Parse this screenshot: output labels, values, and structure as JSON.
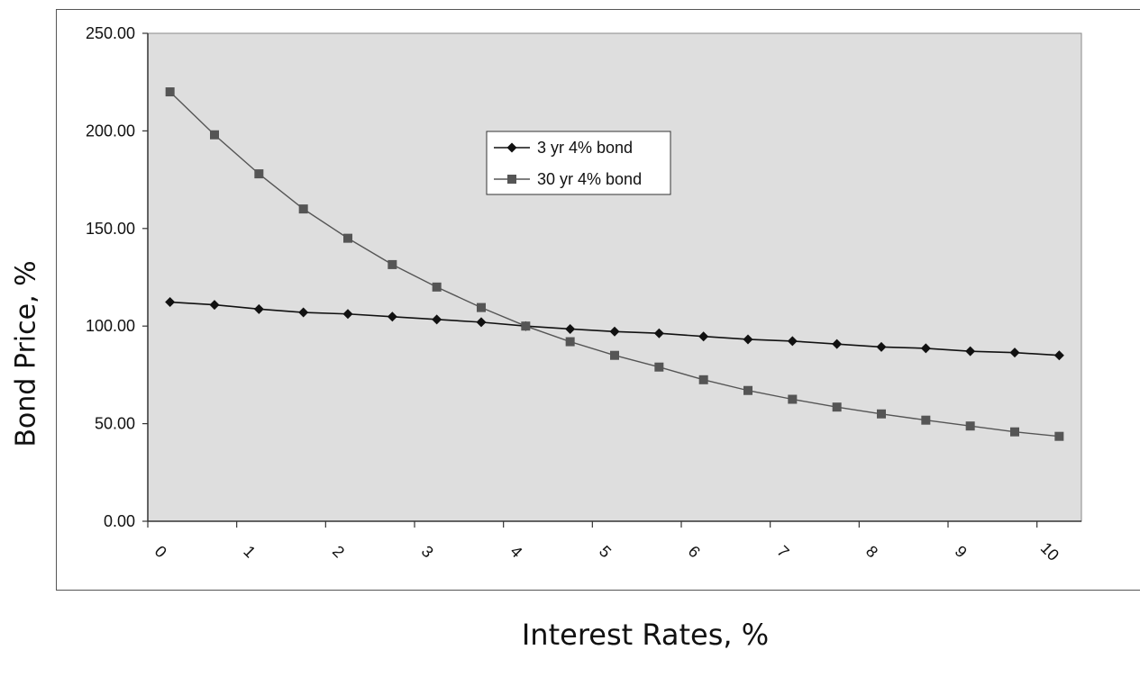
{
  "chart_data": {
    "type": "line",
    "xlabel": "Interest Rates, %",
    "ylabel": "Bond Price, %",
    "x": [
      0.25,
      0.75,
      1.25,
      1.75,
      2.25,
      2.75,
      3.25,
      3.75,
      4.25,
      4.75,
      5.25,
      5.75,
      6.25,
      6.75,
      7.25,
      7.75,
      8.25,
      8.75,
      9.25,
      9.75,
      10.25
    ],
    "x_ticks": [
      "0",
      "1",
      "2",
      "3",
      "4",
      "5",
      "6",
      "7",
      "8",
      "9",
      "10"
    ],
    "y_ticks": [
      "0.00",
      "50.00",
      "100.00",
      "150.00",
      "200.00",
      "250.00"
    ],
    "ylim": [
      0,
      250
    ],
    "grid": false,
    "legend_position": "top-center",
    "plot_background": "#dedede",
    "series": [
      {
        "name": "3 yr 4% bond",
        "marker": "diamond",
        "color": "#111111",
        "values": [
          112.3,
          110.9,
          108.7,
          107.0,
          106.2,
          104.8,
          103.4,
          102.0,
          100.0,
          98.5,
          97.2,
          96.3,
          94.7,
          93.2,
          92.3,
          90.8,
          89.3,
          88.6,
          87.1,
          86.4,
          85.0
        ]
      },
      {
        "name": "30 yr 4% bond",
        "marker": "square",
        "color": "#555555",
        "values": [
          220.0,
          198.0,
          178.0,
          160.0,
          145.0,
          131.5,
          120.0,
          109.5,
          100.0,
          92.0,
          85.0,
          79.0,
          72.5,
          67.0,
          62.5,
          58.5,
          55.0,
          51.8,
          48.8,
          45.8,
          43.5
        ]
      }
    ]
  }
}
